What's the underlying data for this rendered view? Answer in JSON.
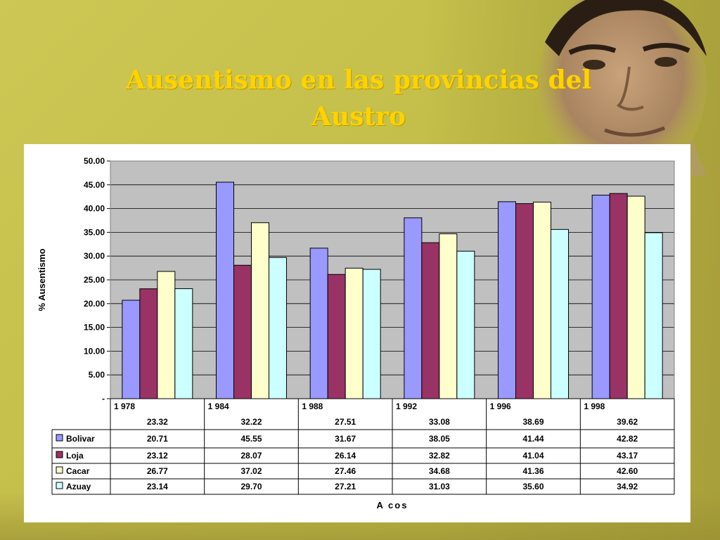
{
  "slide": {
    "title_line1": "Ausentismo en las provincias del",
    "title_line2": "Austro"
  },
  "colors": {
    "background": "#c9c451",
    "title": "#ffd200",
    "plot_area": "#c0c0c0"
  },
  "chart_data": {
    "type": "bar",
    "categories": [
      "1 978",
      "1 984",
      "1 988",
      "1  992",
      "1 996",
      "1  998"
    ],
    "overall": [
      "23.32",
      "32.22",
      "27.51",
      "33.08",
      "38.69",
      "39.62"
    ],
    "series": [
      {
        "name": "Bolivar",
        "color": "#9999ff",
        "values": [
          20.71,
          45.55,
          31.67,
          38.05,
          41.44,
          42.82
        ],
        "labels": [
          "20.71",
          "45.55",
          "31.67",
          "38.05",
          "41.44",
          "42.82"
        ]
      },
      {
        "name": "Loja",
        "color": "#993366",
        "values": [
          23.12,
          28.07,
          26.14,
          32.82,
          41.04,
          43.17
        ],
        "labels": [
          "23.12",
          "28.07",
          "26.14",
          "32.82",
          "41.04",
          "43.17"
        ]
      },
      {
        "name": "Cacar",
        "color": "#ffffcc",
        "values": [
          26.77,
          37.02,
          27.46,
          34.68,
          41.36,
          42.6
        ],
        "labels": [
          "26.77",
          "37.02",
          "27.46",
          "34.68",
          "41.36",
          "42.60"
        ]
      },
      {
        "name": "Azuay",
        "color": "#ccffff",
        "values": [
          23.14,
          29.7,
          27.21,
          31.03,
          35.6,
          34.92
        ],
        "labels": [
          "23.14",
          "29.70",
          "27.21",
          "31.03",
          "35.60",
          "34.92"
        ]
      }
    ],
    "ylabel": "% Ausentismo",
    "xlabel": "A cos",
    "ylim": [
      0,
      50
    ],
    "yticks": [
      "-",
      "5.00",
      "10.00",
      "15.00",
      "20.00",
      "25.00",
      "30.00",
      "35.00",
      "40.00",
      "45.00",
      "50.00"
    ],
    "grid": true,
    "legend": "data-table"
  }
}
